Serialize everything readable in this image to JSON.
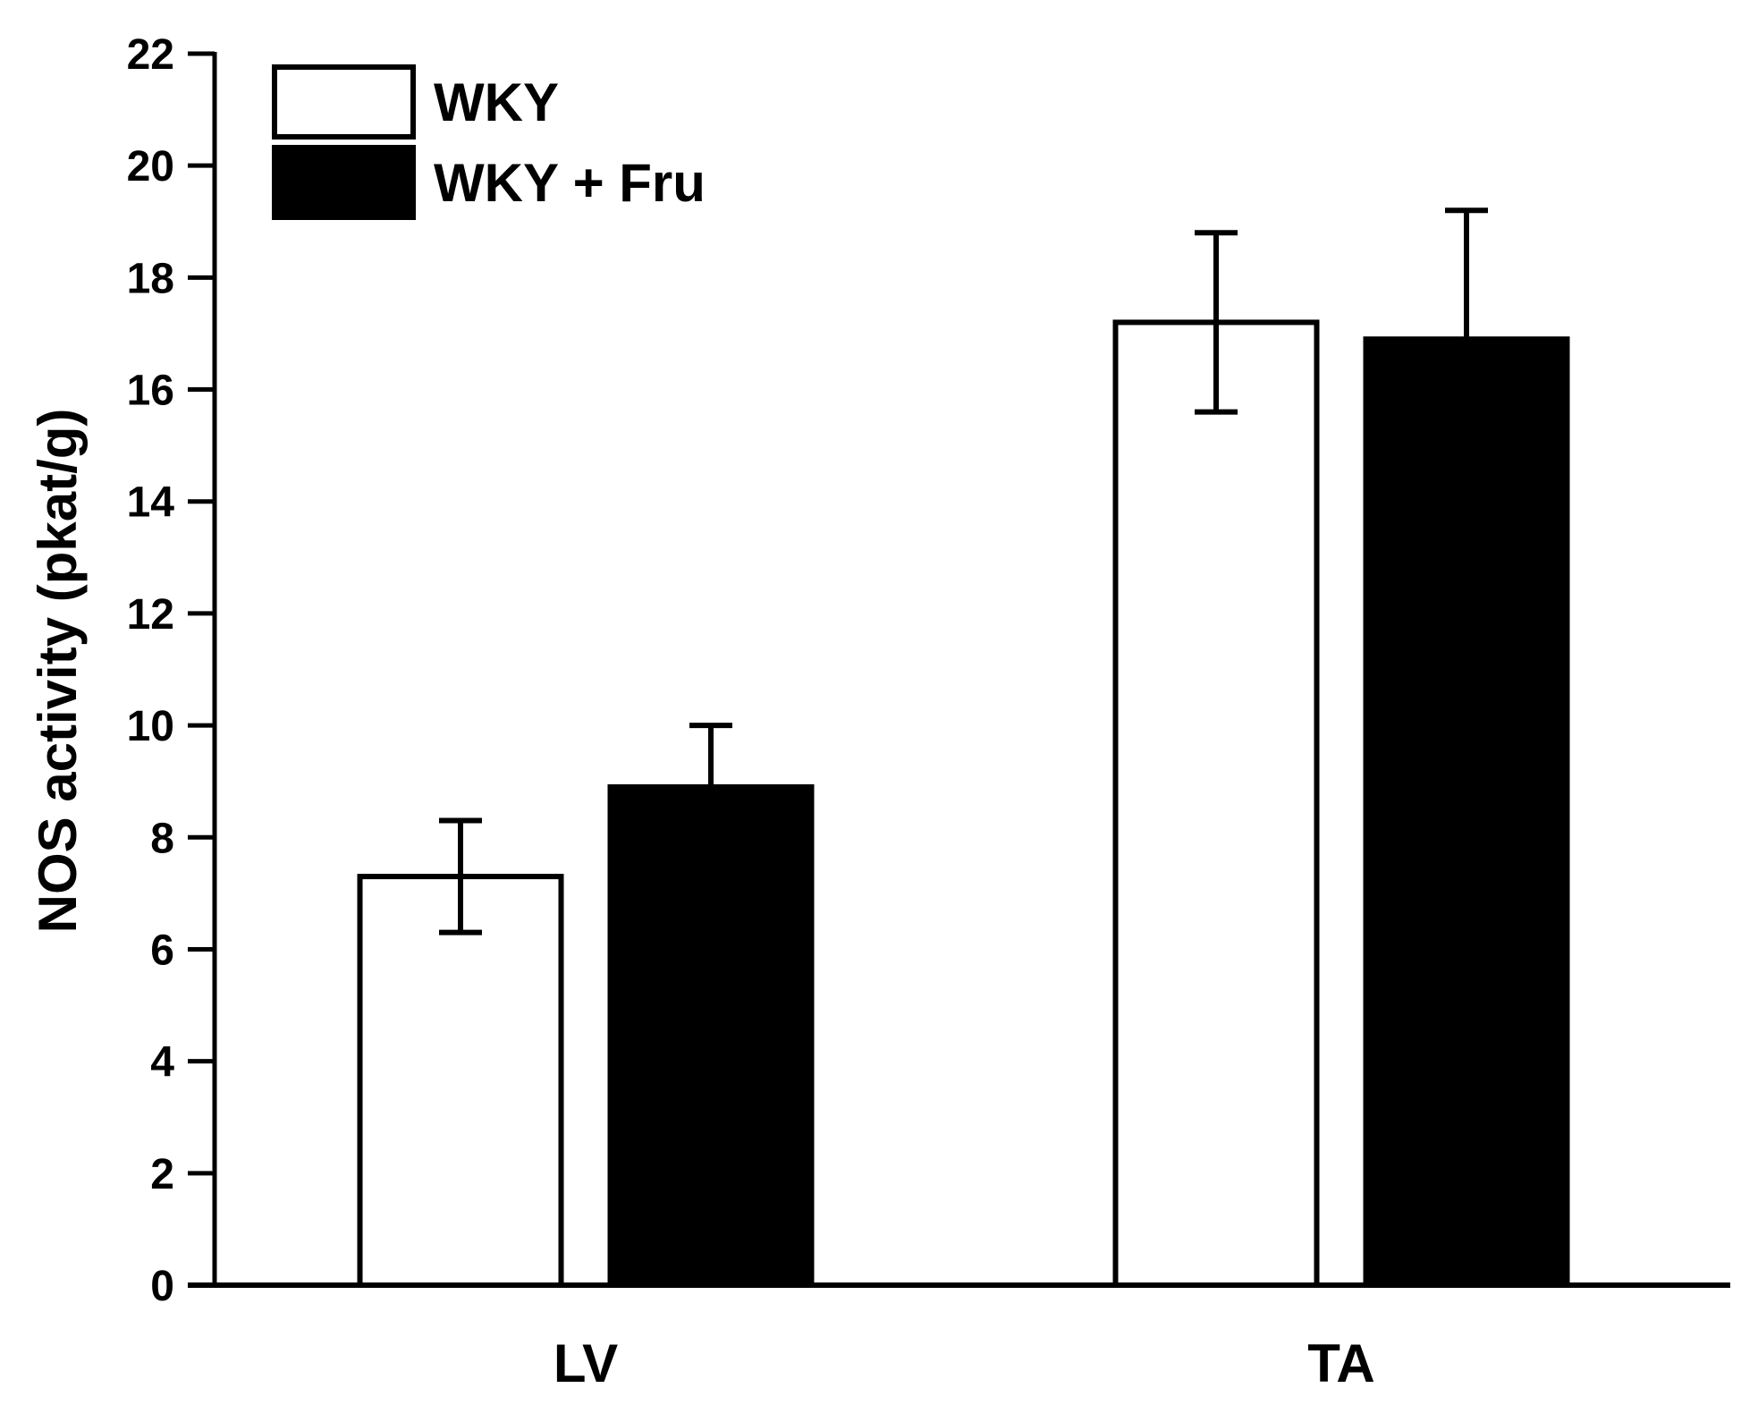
{
  "chart_data": {
    "type": "bar",
    "title": "",
    "xlabel": "",
    "ylabel": "NOS activity (pkat/g)",
    "ylim": [
      0,
      22
    ],
    "yticks": [
      0,
      2,
      4,
      6,
      8,
      10,
      12,
      14,
      16,
      18,
      20,
      22
    ],
    "categories": [
      "LV",
      "TA"
    ],
    "series": [
      {
        "name": "WKY",
        "fill": "#ffffff",
        "values": [
          7.3,
          17.2
        ],
        "errors": [
          1.0,
          1.6
        ]
      },
      {
        "name": "WKY + Fru",
        "fill": "#000000",
        "values": [
          8.9,
          16.9
        ],
        "errors": [
          1.1,
          2.3
        ]
      }
    ],
    "legend": {
      "position": "top-left"
    },
    "grid": false
  }
}
